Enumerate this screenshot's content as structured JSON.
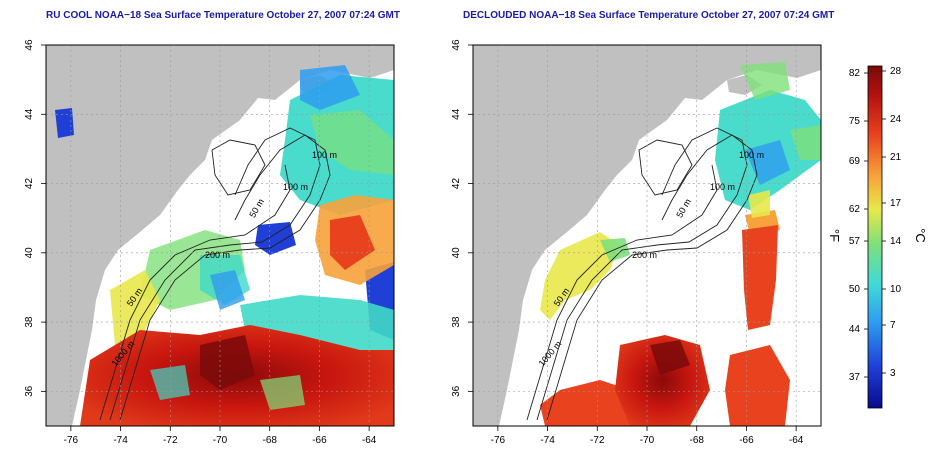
{
  "maps": [
    {
      "id": "left",
      "title": "RU COOL NOAA−18 Sea Surface Temperature October 27, 2007 07:24 GMT",
      "lon_ticks": [
        "-76",
        "-74",
        "-72",
        "-70",
        "-68",
        "-66",
        "-64"
      ],
      "lat_ticks": [
        "36",
        "38",
        "40",
        "42",
        "44",
        "46"
      ],
      "isobath_labels": [
        "100 m",
        "100 m",
        "50 m",
        "200 m",
        "50 m",
        "1000 m"
      ]
    },
    {
      "id": "right",
      "title": "DECLOUDED NOAA−18 Sea Surface Temperature October 27, 2007 07:24 GMT",
      "lon_ticks": [
        "-76",
        "-74",
        "-72",
        "-70",
        "-68",
        "-66",
        "-64"
      ],
      "lat_ticks": [
        "36",
        "38",
        "40",
        "42",
        "44",
        "46"
      ],
      "isobath_labels": [
        "100 m",
        "100 m",
        "50 m",
        "200 m",
        "50 m",
        "1000 m"
      ]
    }
  ],
  "colorbar": {
    "fahrenheit_ticks": [
      "82",
      "75",
      "69",
      "62",
      "57",
      "50",
      "44",
      "37"
    ],
    "celsius_ticks": [
      "28",
      "24",
      "21",
      "17",
      "14",
      "10",
      "7",
      "3"
    ],
    "unit_left": "°F",
    "unit_right": "°C",
    "colors": [
      "#0a0a8c",
      "#1f3fd6",
      "#2e9cf0",
      "#3fd9d9",
      "#7fe07a",
      "#e8e84a",
      "#f7a23a",
      "#e8421e",
      "#b01010",
      "#7a0a0a"
    ]
  },
  "style": {
    "land": "#c0c0c0",
    "title_color": "#1a1aa6",
    "grid": "#9a9a9a"
  }
}
